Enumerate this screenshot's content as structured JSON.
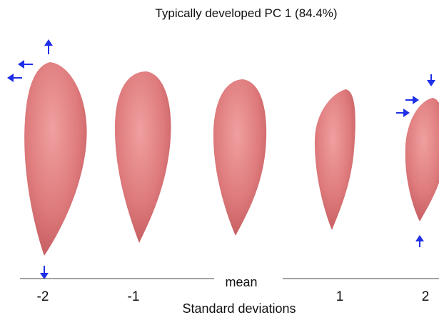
{
  "title": "Typically developed PC 1 (84.4%)",
  "axis": {
    "tick_labels": [
      "-2",
      "-1",
      "mean",
      "1",
      "2"
    ],
    "label": "Standard deviations"
  }
}
